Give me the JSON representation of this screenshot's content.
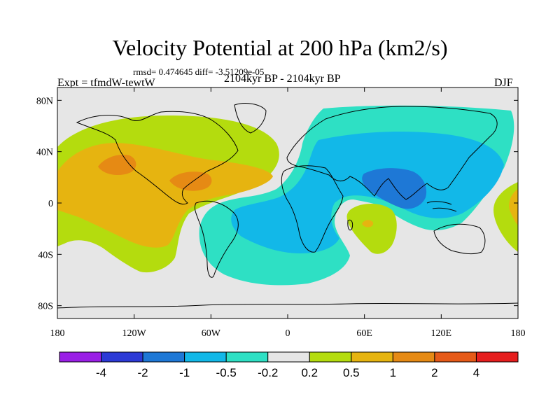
{
  "chart_data": {
    "type": "heatmap",
    "title": "Velocity Potential at 200 hPa (km2/s)",
    "stats_text": "rmsd= 0.474645 diff= -3.51209e-05",
    "left_annotation": "Expt = tfmdW-tewtW",
    "center_subtitle": "2104kyr BP - 2104kyr BP",
    "right_annotation": "DJF",
    "map_projection": "cylindrical equidistant",
    "lon_range": [
      -180,
      180
    ],
    "lat_range": [
      -90,
      90
    ],
    "y_ticks": [
      {
        "lat": 80,
        "label": "80N"
      },
      {
        "lat": 40,
        "label": "40N"
      },
      {
        "lat": 0,
        "label": "0"
      },
      {
        "lat": -40,
        "label": "40S"
      },
      {
        "lat": -80,
        "label": "80S"
      }
    ],
    "x_ticks": [
      {
        "lon": -180,
        "label": "180"
      },
      {
        "lon": -120,
        "label": "120W"
      },
      {
        "lon": -60,
        "label": "60W"
      },
      {
        "lon": 0,
        "label": "0"
      },
      {
        "lon": 60,
        "label": "60E"
      },
      {
        "lon": 120,
        "label": "120E"
      },
      {
        "lon": 180,
        "label": "180"
      }
    ],
    "colorbar": {
      "colors": [
        "#9a1fe6",
        "#2c3ad6",
        "#1e78d6",
        "#12b8e8",
        "#2ee0c4",
        "#e6e6e6",
        "#b4dc0e",
        "#e6b410",
        "#e68a14",
        "#e65a18",
        "#e61e1e"
      ],
      "labels": [
        "-4",
        "-2",
        "-1",
        "-0.5",
        "-0.2",
        "0.2",
        "0.5",
        "1",
        "2",
        "4"
      ]
    },
    "field_regions": [
      {
        "name": "positive anomaly over Americas and central Pacific",
        "category": "0.2 to 0.5"
      },
      {
        "name": "western Atlantic / Pacific core",
        "category": "0.5 to 1"
      },
      {
        "name": "Caribbean / eastern Pacific maxima",
        "category": "1 to 2"
      },
      {
        "name": "Eurasia / Africa / Indian Ocean negative anomaly",
        "category": "-0.5 to -0.2"
      },
      {
        "name": "South Asia / Maritime Continent core",
        "category": "-1 to -0.5"
      },
      {
        "name": "southern Indian Ocean positive cell",
        "category": "0.2 to 0.5"
      }
    ]
  }
}
